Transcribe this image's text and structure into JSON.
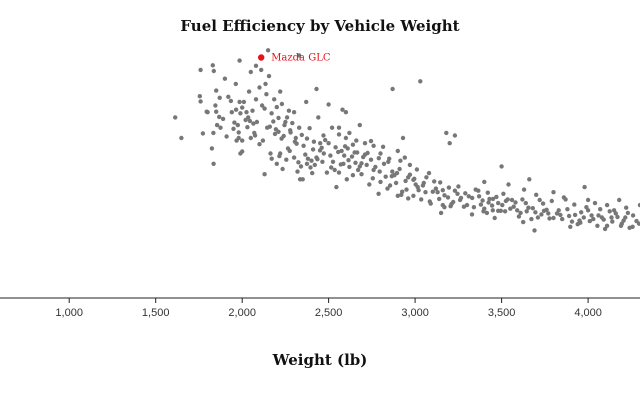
{
  "chart_data": {
    "type": "scatter",
    "title": "Fuel Efficiency by Vehicle Weight",
    "xlabel": "Weight (lb)",
    "ylabel": "",
    "xlim": [
      600,
      4300
    ],
    "ylim": [
      0,
      50
    ],
    "x_ticks": [
      1000,
      1500,
      2000,
      2500,
      3000,
      3500,
      4000
    ],
    "x_tick_labels": [
      "1,000",
      "1,500",
      "2,000",
      "2,500",
      "3,000",
      "3,500",
      "4,000"
    ],
    "point_color": "#777777",
    "highlight_color": "#e8101a",
    "highlight": {
      "label": "Mazda GLC",
      "x": 2110,
      "y": 46.6
    },
    "points": [
      [
        1613,
        35
      ],
      [
        1649,
        31
      ],
      [
        1755,
        39.1
      ],
      [
        1760,
        38.1
      ],
      [
        1773,
        31.9
      ],
      [
        1795,
        36.1
      ],
      [
        1800,
        36
      ],
      [
        1825,
        29
      ],
      [
        1834,
        32
      ],
      [
        1835,
        26
      ],
      [
        1836,
        44
      ],
      [
        1845,
        37.3
      ],
      [
        1850,
        36.1
      ],
      [
        1855,
        33.5
      ],
      [
        1867,
        35.1
      ],
      [
        1875,
        33
      ],
      [
        1950,
        32.8
      ],
      [
        1963,
        41.5
      ],
      [
        1965,
        36.5
      ],
      [
        1968,
        30.5
      ],
      [
        1975,
        33.5
      ],
      [
        1980,
        32.1
      ],
      [
        1985,
        38
      ],
      [
        1990,
        28
      ],
      [
        2000,
        30.5
      ],
      [
        2000,
        28.4
      ],
      [
        2020,
        34.5
      ],
      [
        2025,
        36
      ],
      [
        2035,
        35
      ],
      [
        2045,
        34.3
      ],
      [
        2050,
        31
      ],
      [
        2065,
        33.8
      ],
      [
        2070,
        32
      ],
      [
        2075,
        31.5
      ],
      [
        2100,
        29.8
      ],
      [
        2110,
        44.2
      ],
      [
        2120,
        30.5
      ],
      [
        2130,
        24
      ],
      [
        2135,
        41.5
      ],
      [
        2145,
        33
      ],
      [
        2155,
        43
      ],
      [
        2164,
        28
      ],
      [
        2171,
        27
      ],
      [
        2180,
        34.2
      ],
      [
        2190,
        31.8
      ],
      [
        2200,
        26
      ],
      [
        2210,
        32.2
      ],
      [
        2215,
        27.5
      ],
      [
        2220,
        28
      ],
      [
        2228,
        30.9
      ],
      [
        2234,
        25
      ],
      [
        2245,
        33.5
      ],
      [
        2255,
        26.8
      ],
      [
        2265,
        29
      ],
      [
        2275,
        28.5
      ],
      [
        2278,
        32.5
      ],
      [
        2300,
        27.2
      ],
      [
        2310,
        31
      ],
      [
        2320,
        24.5
      ],
      [
        2330,
        33
      ],
      [
        2335,
        23
      ],
      [
        2340,
        25.5
      ],
      [
        2350,
        23
      ],
      [
        2375,
        26
      ],
      [
        2380,
        27
      ],
      [
        2395,
        25.3
      ],
      [
        2401,
        26.6
      ],
      [
        2405,
        24.2
      ],
      [
        2420,
        25.8
      ],
      [
        2430,
        27.2
      ],
      [
        2440,
        35
      ],
      [
        2451,
        30
      ],
      [
        2464,
        26.4
      ],
      [
        2472,
        28
      ],
      [
        2490,
        24.3
      ],
      [
        2500,
        30
      ],
      [
        2515,
        25.3
      ],
      [
        2525,
        26.4
      ],
      [
        2545,
        21.5
      ],
      [
        2560,
        24.3
      ],
      [
        2575,
        28.5
      ],
      [
        2585,
        26
      ],
      [
        2600,
        31
      ],
      [
        2605,
        23
      ],
      [
        2620,
        25.4
      ],
      [
        2635,
        27.4
      ],
      [
        2640,
        23.8
      ],
      [
        2655,
        26.2
      ],
      [
        2670,
        24.8
      ],
      [
        2690,
        24
      ],
      [
        2700,
        27.3
      ],
      [
        2720,
        25.8
      ],
      [
        2735,
        22
      ],
      [
        2745,
        26.8
      ],
      [
        2755,
        23.2
      ],
      [
        2789,
        20.2
      ],
      [
        2795,
        24.5
      ],
      [
        2800,
        22.5
      ],
      [
        2830,
        23.5
      ],
      [
        2855,
        21.8
      ],
      [
        2868,
        24.5
      ],
      [
        2890,
        22.3
      ],
      [
        2900,
        19.8
      ],
      [
        2910,
        25
      ],
      [
        2925,
        20.6
      ],
      [
        2940,
        27.2
      ],
      [
        2950,
        21
      ],
      [
        2960,
        19.3
      ],
      [
        2970,
        23.9
      ],
      [
        2990,
        19.8
      ],
      [
        3003,
        22
      ],
      [
        3015,
        21.5
      ],
      [
        3035,
        19.1
      ],
      [
        3060,
        20.5
      ],
      [
        3085,
        18.7
      ],
      [
        3102,
        20.6
      ],
      [
        3139,
        19.2
      ],
      [
        3150,
        16.5
      ],
      [
        3160,
        18
      ],
      [
        3169,
        17.6
      ],
      [
        3190,
        19.5
      ],
      [
        3205,
        17.8
      ],
      [
        3220,
        18.6
      ],
      [
        3245,
        20.2
      ],
      [
        3265,
        19.4
      ],
      [
        3282,
        17.7
      ],
      [
        3300,
        18
      ],
      [
        3329,
        16.2
      ],
      [
        3365,
        20.8
      ],
      [
        3380,
        18.1
      ],
      [
        3400,
        17.3
      ],
      [
        3415,
        16.5
      ],
      [
        3430,
        19.2
      ],
      [
        3449,
        17
      ],
      [
        3460,
        15.5
      ],
      [
        3480,
        16.9
      ],
      [
        3504,
        18
      ],
      [
        3520,
        16.8
      ],
      [
        3535,
        19.1
      ],
      [
        3570,
        17.7
      ],
      [
        3600,
        15.8
      ],
      [
        3620,
        19.1
      ],
      [
        3645,
        16.8
      ],
      [
        3672,
        15.3
      ],
      [
        3690,
        13.1
      ],
      [
        3730,
        16.2
      ],
      [
        3760,
        17.1
      ],
      [
        3777,
        15.4
      ],
      [
        3820,
        16.4
      ],
      [
        3850,
        15.3
      ],
      [
        3880,
        17.2
      ],
      [
        3897,
        13.8
      ],
      [
        3907,
        14.8
      ],
      [
        3955,
        14.6
      ],
      [
        4054,
        14
      ],
      [
        4080,
        15.6
      ],
      [
        4098,
        13.4
      ],
      [
        4140,
        14.8
      ],
      [
        4190,
        14
      ],
      [
        4215,
        15.6
      ],
      [
        4257,
        13.8
      ],
      [
        4295,
        14.4
      ],
      [
        2080,
        45
      ],
      [
        2050,
        43.8
      ],
      [
        1985,
        46
      ],
      [
        1830,
        45.1
      ],
      [
        1760,
        44.2
      ],
      [
        2150,
        48
      ],
      [
        2330,
        47
      ],
      [
        2870,
        40.5
      ],
      [
        3030,
        42
      ],
      [
        2600,
        36
      ],
      [
        2500,
        37.5
      ],
      [
        2430,
        40.5
      ],
      [
        2220,
        40
      ],
      [
        2370,
        38
      ],
      [
        2260,
        35
      ],
      [
        1900,
        42.5
      ],
      [
        1850,
        40.2
      ],
      [
        1920,
        39
      ],
      [
        1940,
        36
      ],
      [
        1990,
        35.8
      ],
      [
        2010,
        38
      ],
      [
        2040,
        40
      ],
      [
        2080,
        38.5
      ],
      [
        2200,
        37
      ],
      [
        2300,
        36
      ],
      [
        2560,
        33
      ],
      [
        2580,
        36.5
      ],
      [
        2620,
        32
      ],
      [
        2660,
        30.5
      ],
      [
        2680,
        33.5
      ],
      [
        2710,
        30
      ],
      [
        2760,
        29.5
      ],
      [
        2800,
        28
      ],
      [
        2850,
        27
      ],
      [
        2900,
        28.5
      ],
      [
        2930,
        31
      ],
      [
        3200,
        30
      ],
      [
        3180,
        32
      ],
      [
        3230,
        31.5
      ],
      [
        3400,
        22.5
      ],
      [
        3500,
        25.5
      ],
      [
        3660,
        23
      ],
      [
        3630,
        21
      ],
      [
        3540,
        22
      ],
      [
        3700,
        20
      ],
      [
        3800,
        20.5
      ],
      [
        3860,
        19.5
      ],
      [
        3980,
        21.5
      ],
      [
        4000,
        19
      ],
      [
        4110,
        18
      ],
      [
        4150,
        17
      ],
      [
        4180,
        19
      ],
      [
        4220,
        17.5
      ],
      [
        4260,
        16
      ],
      [
        4300,
        18
      ],
      [
        3950,
        15
      ],
      [
        4000,
        17
      ],
      [
        4060,
        16
      ],
      [
        4110,
        14
      ],
      [
        4160,
        16.4
      ],
      [
        4205,
        15
      ],
      [
        4240,
        13.6
      ],
      [
        4280,
        14.9
      ],
      [
        2450,
        28.6
      ],
      [
        2470,
        31.5
      ],
      [
        2520,
        33
      ],
      [
        2540,
        29.2
      ],
      [
        2560,
        31.7
      ],
      [
        2590,
        27.6
      ],
      [
        2610,
        29
      ],
      [
        2650,
        28.2
      ],
      [
        2680,
        25.5
      ],
      [
        2710,
        27.8
      ],
      [
        2760,
        24.8
      ],
      [
        2820,
        26
      ],
      [
        2840,
        21.2
      ],
      [
        2880,
        23.8
      ],
      [
        2920,
        20
      ],
      [
        2960,
        23.4
      ],
      [
        2990,
        22.9
      ],
      [
        3020,
        20.9
      ],
      [
        3050,
        22.3
      ],
      [
        3090,
        18.3
      ],
      [
        3120,
        21.2
      ],
      [
        3160,
        20.9
      ],
      [
        3210,
        18.2
      ],
      [
        3250,
        21.6
      ],
      [
        3290,
        20.3
      ],
      [
        3330,
        19.4
      ],
      [
        3350,
        21
      ],
      [
        3390,
        18.9
      ],
      [
        3420,
        20.4
      ],
      [
        3450,
        19.2
      ],
      [
        3480,
        18.4
      ],
      [
        3510,
        20.2
      ],
      [
        3560,
        19
      ],
      [
        3590,
        17
      ],
      [
        3640,
        18.4
      ],
      [
        3680,
        17.4
      ],
      [
        3720,
        19
      ],
      [
        3740,
        18.3
      ],
      [
        3790,
        18.8
      ],
      [
        3830,
        17
      ],
      [
        3870,
        19.1
      ],
      [
        3920,
        18.1
      ],
      [
        3960,
        16.6
      ],
      [
        3990,
        17.6
      ],
      [
        4020,
        16
      ],
      [
        4040,
        18.4
      ],
      [
        4070,
        17.2
      ],
      [
        4125,
        16.8
      ],
      [
        4170,
        15.7
      ],
      [
        2100,
        40.8
      ],
      [
        2130,
        36.7
      ],
      [
        2160,
        33.2
      ],
      [
        2185,
        38.5
      ],
      [
        2210,
        34.9
      ],
      [
        2240,
        31.4
      ],
      [
        2270,
        36.3
      ],
      [
        2290,
        33.9
      ],
      [
        2315,
        29.9
      ],
      [
        2345,
        31.6
      ],
      [
        2365,
        27.8
      ],
      [
        2390,
        32.9
      ],
      [
        2415,
        30.3
      ],
      [
        1870,
        38.8
      ],
      [
        1890,
        34.7
      ],
      [
        1910,
        31.3
      ],
      [
        1935,
        38.2
      ],
      [
        1955,
        34
      ],
      [
        1980,
        31
      ],
      [
        2000,
        36.9
      ],
      [
        2030,
        33.1
      ],
      [
        2060,
        36.3
      ],
      [
        2085,
        34.1
      ],
      [
        2115,
        37.3
      ],
      [
        2140,
        39.5
      ],
      [
        2170,
        35.8
      ],
      [
        2195,
        32.7
      ],
      [
        2230,
        37.6
      ],
      [
        2250,
        34.1
      ],
      [
        2280,
        32.1
      ],
      [
        2305,
        30.3
      ],
      [
        2325,
        26.3
      ],
      [
        2355,
        29.5
      ],
      [
        2375,
        30.9
      ],
      [
        2410,
        28.8
      ],
      [
        2435,
        26.9
      ],
      [
        2460,
        29.1
      ],
      [
        2480,
        30.6
      ],
      [
        2510,
        27.6
      ],
      [
        2535,
        24.8
      ],
      [
        2555,
        28.3
      ],
      [
        2570,
        25.9
      ],
      [
        2595,
        29.4
      ],
      [
        2615,
        26.7
      ],
      [
        2640,
        29.7
      ],
      [
        2665,
        28.2
      ],
      [
        2690,
        26.1
      ],
      [
        2725,
        28.1
      ],
      [
        2745,
        30.4
      ],
      [
        2770,
        25.4
      ],
      [
        2790,
        27.1
      ],
      [
        2815,
        29.3
      ],
      [
        2845,
        26.4
      ],
      [
        2865,
        23.6
      ],
      [
        2895,
        24.2
      ],
      [
        2915,
        26.6
      ],
      [
        2945,
        22.7
      ],
      [
        2970,
        25.8
      ],
      [
        2995,
        23.1
      ],
      [
        3010,
        24.9
      ],
      [
        3045,
        21.8
      ],
      [
        3065,
        23.4
      ],
      [
        3080,
        24.2
      ],
      [
        3110,
        22.6
      ],
      [
        3130,
        20.5
      ],
      [
        3145,
        22.4
      ],
      [
        3170,
        19.9
      ],
      [
        3195,
        21.4
      ],
      [
        3230,
        20.8
      ],
      [
        3260,
        19
      ],
      [
        3310,
        19.7
      ],
      [
        3340,
        17.6
      ],
      [
        3370,
        19.7
      ],
      [
        3395,
        16.8
      ],
      [
        3425,
        18.5
      ],
      [
        3445,
        17.9
      ],
      [
        3470,
        19.6
      ],
      [
        3495,
        16.9
      ],
      [
        3525,
        18.8
      ],
      [
        3550,
        17.3
      ],
      [
        3580,
        18.5
      ],
      [
        3610,
        16.5
      ],
      [
        3625,
        14.7
      ],
      [
        3655,
        17.5
      ],
      [
        3695,
        16.6
      ],
      [
        3710,
        15.6
      ],
      [
        3745,
        16.9
      ],
      [
        3770,
        16.4
      ],
      [
        3800,
        15.5
      ],
      [
        3840,
        16.1
      ],
      [
        3890,
        15.9
      ],
      [
        3925,
        16.1
      ],
      [
        3940,
        14.3
      ],
      [
        3975,
        15.6
      ],
      [
        4010,
        14.9
      ],
      [
        4030,
        15.3
      ],
      [
        4090,
        15.2
      ],
      [
        4135,
        15.6
      ],
      [
        4195,
        14.4
      ],
      [
        4230,
        16.5
      ]
    ]
  }
}
